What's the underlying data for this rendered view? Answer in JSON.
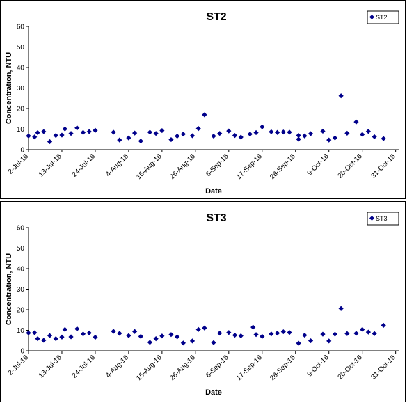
{
  "chart_data": [
    {
      "type": "scatter",
      "title": "ST2",
      "xlabel": "Date",
      "ylabel": "Concentration, NTU",
      "ylim": [
        0,
        60
      ],
      "yticks": [
        0,
        10,
        20,
        30,
        40,
        50,
        60
      ],
      "xlim": [
        "2016-07-02",
        "2016-11-01"
      ],
      "xtick_labels": [
        "2-Jul-16",
        "13-Jul-16",
        "24-Jul-16",
        "4-Aug-16",
        "15-Aug-16",
        "26-Aug-16",
        "6-Sep-16",
        "17-Sep-16",
        "28-Sep-16",
        "9-Oct-16",
        "20-Oct-16",
        "31-Oct-16"
      ],
      "xtick_dates": [
        "2016-07-02",
        "2016-07-13",
        "2016-07-24",
        "2016-08-04",
        "2016-08-15",
        "2016-08-26",
        "2016-09-06",
        "2016-09-17",
        "2016-09-28",
        "2016-10-09",
        "2016-10-20",
        "2016-10-31"
      ],
      "legend_position": "top-right",
      "color": "#00008b",
      "series": [
        {
          "name": "ST2",
          "points": [
            {
              "x": "2016-07-02",
              "y": 6.7
            },
            {
              "x": "2016-07-04",
              "y": 6.2
            },
            {
              "x": "2016-07-05",
              "y": 8.3
            },
            {
              "x": "2016-07-07",
              "y": 8.8
            },
            {
              "x": "2016-07-09",
              "y": 3.9
            },
            {
              "x": "2016-07-11",
              "y": 6.9
            },
            {
              "x": "2016-07-13",
              "y": 7.1
            },
            {
              "x": "2016-07-14",
              "y": 10.1
            },
            {
              "x": "2016-07-16",
              "y": 7.9
            },
            {
              "x": "2016-07-18",
              "y": 10.6
            },
            {
              "x": "2016-07-20",
              "y": 8.4
            },
            {
              "x": "2016-07-22",
              "y": 8.8
            },
            {
              "x": "2016-07-24",
              "y": 9.4
            },
            {
              "x": "2016-07-30",
              "y": 8.5
            },
            {
              "x": "2016-08-01",
              "y": 4.7
            },
            {
              "x": "2016-08-04",
              "y": 5.7
            },
            {
              "x": "2016-08-06",
              "y": 8.1
            },
            {
              "x": "2016-08-08",
              "y": 4.2
            },
            {
              "x": "2016-08-11",
              "y": 8.5
            },
            {
              "x": "2016-08-13",
              "y": 7.9
            },
            {
              "x": "2016-08-15",
              "y": 9.3
            },
            {
              "x": "2016-08-18",
              "y": 4.9
            },
            {
              "x": "2016-08-20",
              "y": 6.6
            },
            {
              "x": "2016-08-22",
              "y": 7.6
            },
            {
              "x": "2016-08-25",
              "y": 6.8
            },
            {
              "x": "2016-08-27",
              "y": 10.3
            },
            {
              "x": "2016-08-29",
              "y": 17.0
            },
            {
              "x": "2016-09-01",
              "y": 6.6
            },
            {
              "x": "2016-09-03",
              "y": 7.9
            },
            {
              "x": "2016-09-06",
              "y": 9.1
            },
            {
              "x": "2016-09-08",
              "y": 6.9
            },
            {
              "x": "2016-09-10",
              "y": 6.1
            },
            {
              "x": "2016-09-13",
              "y": 7.6
            },
            {
              "x": "2016-09-15",
              "y": 8.3
            },
            {
              "x": "2016-09-17",
              "y": 11.1
            },
            {
              "x": "2016-09-20",
              "y": 8.7
            },
            {
              "x": "2016-09-22",
              "y": 8.4
            },
            {
              "x": "2016-09-24",
              "y": 8.6
            },
            {
              "x": "2016-09-26",
              "y": 8.5
            },
            {
              "x": "2016-09-29",
              "y": 6.9
            },
            {
              "x": "2016-09-29",
              "y": 5.1
            },
            {
              "x": "2016-10-01",
              "y": 6.7
            },
            {
              "x": "2016-10-03",
              "y": 7.8
            },
            {
              "x": "2016-10-07",
              "y": 9.0
            },
            {
              "x": "2016-10-09",
              "y": 4.7
            },
            {
              "x": "2016-10-11",
              "y": 5.7
            },
            {
              "x": "2016-10-13",
              "y": 26.2
            },
            {
              "x": "2016-10-15",
              "y": 8.0
            },
            {
              "x": "2016-10-18",
              "y": 13.5
            },
            {
              "x": "2016-10-20",
              "y": 7.4
            },
            {
              "x": "2016-10-22",
              "y": 8.9
            },
            {
              "x": "2016-10-24",
              "y": 6.3
            },
            {
              "x": "2016-10-27",
              "y": 5.4
            }
          ]
        }
      ]
    },
    {
      "type": "scatter",
      "title": "ST3",
      "xlabel": "Date",
      "ylabel": "Concentration, NTU",
      "ylim": [
        0,
        60
      ],
      "yticks": [
        0,
        10,
        20,
        30,
        40,
        50,
        60
      ],
      "xlim": [
        "2016-07-02",
        "2016-11-01"
      ],
      "xtick_labels": [
        "2-Jul-16",
        "13-Jul-16",
        "24-Jul-16",
        "4-Aug-16",
        "15-Aug-16",
        "26-Aug-16",
        "6-Sep-16",
        "17-Sep-16",
        "28-Sep-16",
        "9-Oct-16",
        "20-Oct-16",
        "31-Oct-16"
      ],
      "xtick_dates": [
        "2016-07-02",
        "2016-07-13",
        "2016-07-24",
        "2016-08-04",
        "2016-08-15",
        "2016-08-26",
        "2016-09-06",
        "2016-09-17",
        "2016-09-28",
        "2016-10-09",
        "2016-10-20",
        "2016-10-31"
      ],
      "legend_position": "top-right",
      "color": "#00008b",
      "series": [
        {
          "name": "ST3",
          "points": [
            {
              "x": "2016-07-02",
              "y": 8.7
            },
            {
              "x": "2016-07-04",
              "y": 8.8
            },
            {
              "x": "2016-07-05",
              "y": 5.9
            },
            {
              "x": "2016-07-07",
              "y": 5.1
            },
            {
              "x": "2016-07-09",
              "y": 7.4
            },
            {
              "x": "2016-07-11",
              "y": 5.9
            },
            {
              "x": "2016-07-13",
              "y": 6.7
            },
            {
              "x": "2016-07-14",
              "y": 10.4
            },
            {
              "x": "2016-07-16",
              "y": 6.8
            },
            {
              "x": "2016-07-18",
              "y": 10.7
            },
            {
              "x": "2016-07-20",
              "y": 8.2
            },
            {
              "x": "2016-07-22",
              "y": 8.7
            },
            {
              "x": "2016-07-24",
              "y": 6.6
            },
            {
              "x": "2016-07-30",
              "y": 9.5
            },
            {
              "x": "2016-08-01",
              "y": 8.5
            },
            {
              "x": "2016-08-04",
              "y": 7.4
            },
            {
              "x": "2016-08-06",
              "y": 9.4
            },
            {
              "x": "2016-08-08",
              "y": 7.0
            },
            {
              "x": "2016-08-11",
              "y": 4.1
            },
            {
              "x": "2016-08-13",
              "y": 5.9
            },
            {
              "x": "2016-08-15",
              "y": 7.2
            },
            {
              "x": "2016-08-18",
              "y": 7.9
            },
            {
              "x": "2016-08-20",
              "y": 6.8
            },
            {
              "x": "2016-08-22",
              "y": 3.8
            },
            {
              "x": "2016-08-25",
              "y": 4.8
            },
            {
              "x": "2016-08-27",
              "y": 10.4
            },
            {
              "x": "2016-08-29",
              "y": 11.1
            },
            {
              "x": "2016-09-01",
              "y": 4.0
            },
            {
              "x": "2016-09-03",
              "y": 8.6
            },
            {
              "x": "2016-09-06",
              "y": 8.9
            },
            {
              "x": "2016-09-08",
              "y": 7.6
            },
            {
              "x": "2016-09-10",
              "y": 7.3
            },
            {
              "x": "2016-09-14",
              "y": 11.5
            },
            {
              "x": "2016-09-15",
              "y": 7.9
            },
            {
              "x": "2016-09-17",
              "y": 7.0
            },
            {
              "x": "2016-09-20",
              "y": 8.2
            },
            {
              "x": "2016-09-22",
              "y": 8.6
            },
            {
              "x": "2016-09-24",
              "y": 9.3
            },
            {
              "x": "2016-09-26",
              "y": 8.9
            },
            {
              "x": "2016-09-29",
              "y": 3.7
            },
            {
              "x": "2016-10-01",
              "y": 7.6
            },
            {
              "x": "2016-10-03",
              "y": 4.9
            },
            {
              "x": "2016-10-07",
              "y": 8.1
            },
            {
              "x": "2016-10-09",
              "y": 4.8
            },
            {
              "x": "2016-10-11",
              "y": 8.1
            },
            {
              "x": "2016-10-13",
              "y": 20.6
            },
            {
              "x": "2016-10-15",
              "y": 8.4
            },
            {
              "x": "2016-10-18",
              "y": 8.5
            },
            {
              "x": "2016-10-20",
              "y": 10.4
            },
            {
              "x": "2016-10-22",
              "y": 9.1
            },
            {
              "x": "2016-10-24",
              "y": 8.4
            },
            {
              "x": "2016-10-27",
              "y": 12.4
            }
          ]
        }
      ]
    }
  ]
}
